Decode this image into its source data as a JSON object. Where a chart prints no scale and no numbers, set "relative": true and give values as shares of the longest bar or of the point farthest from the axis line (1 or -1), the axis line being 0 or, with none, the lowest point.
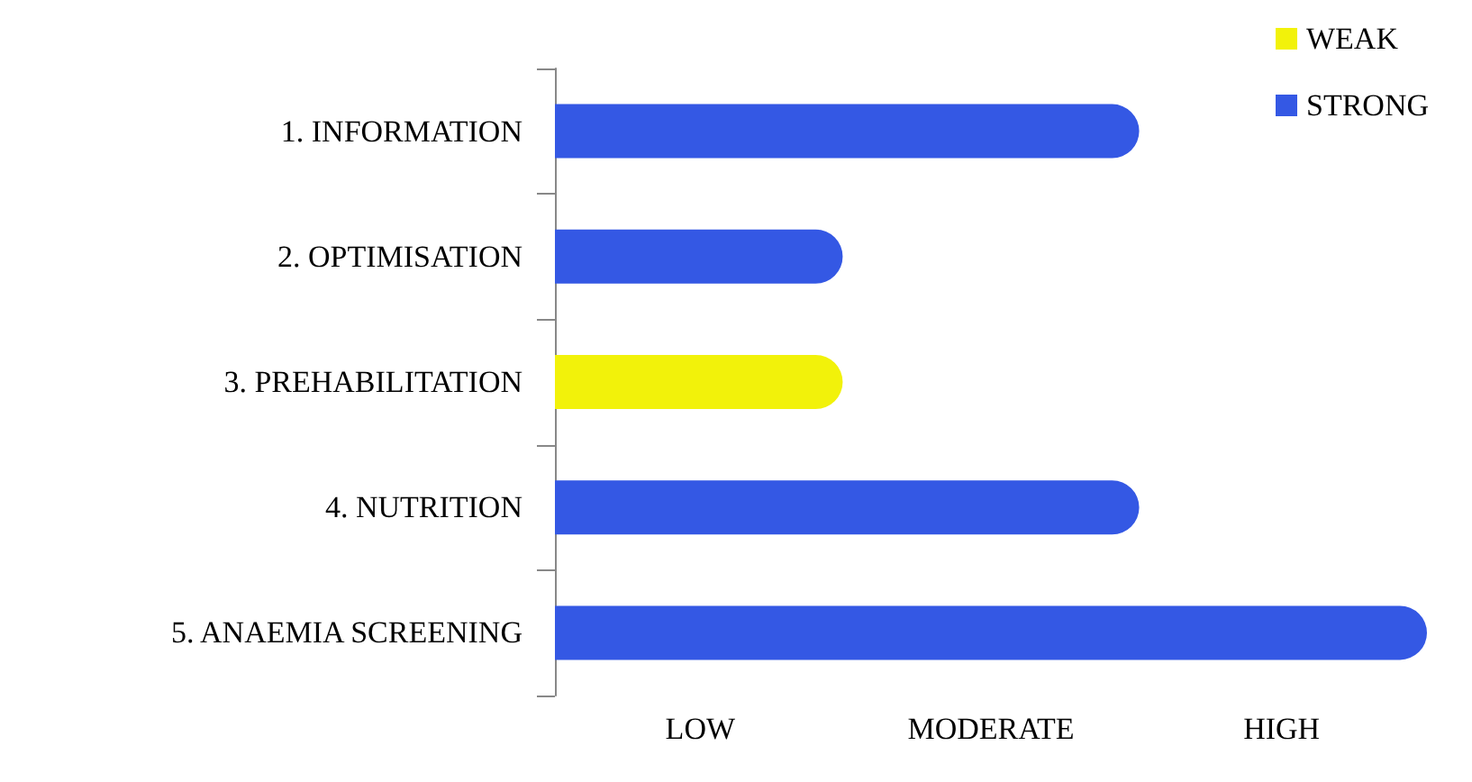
{
  "chart_data": {
    "type": "bar",
    "orientation": "horizontal",
    "stacked": true,
    "categories": [
      "1. INFORMATION",
      "2. OPTIMISATION",
      "3. PREHABILITATION",
      "4. NUTRITION",
      "5. ANAEMIA SCREENING"
    ],
    "series": [
      {
        "name": "WEAK",
        "color": "#f2f20a",
        "values": [
          null,
          null,
          0.33,
          null,
          null
        ]
      },
      {
        "name": "STRONG",
        "color": "#3458e4",
        "values": [
          0.67,
          0.33,
          null,
          0.67,
          1
        ]
      }
    ],
    "relative": true,
    "annotations": [
      "LOW",
      "MODERATE",
      "HIGH"
    ],
    "grid": false,
    "legend": "top right"
  }
}
